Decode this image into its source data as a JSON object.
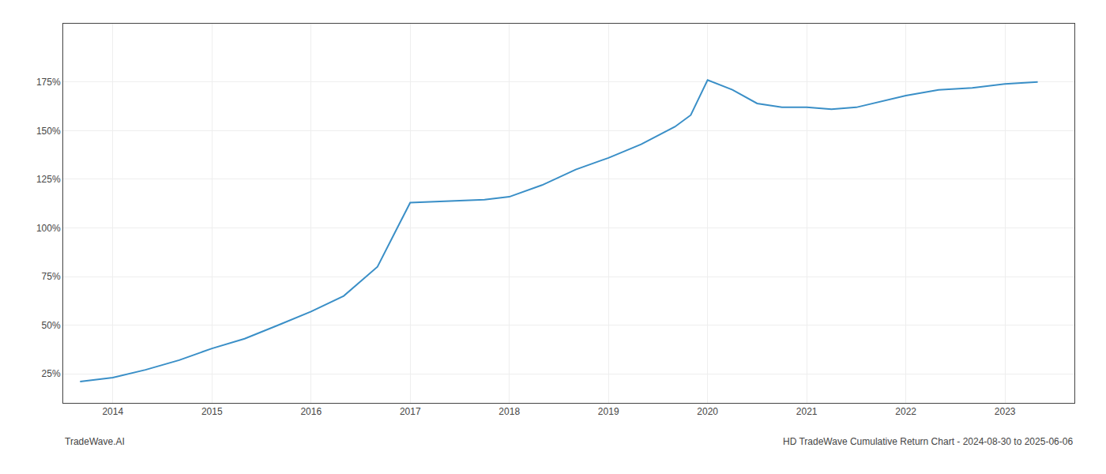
{
  "chart_data": {
    "type": "line",
    "x": [
      2013.67,
      2014.0,
      2014.33,
      2014.67,
      2015.0,
      2015.33,
      2015.67,
      2016.0,
      2016.33,
      2016.67,
      2017.0,
      2017.25,
      2017.5,
      2017.75,
      2018.0,
      2018.33,
      2018.67,
      2019.0,
      2019.33,
      2019.67,
      2019.83,
      2020.0,
      2020.25,
      2020.5,
      2020.75,
      2021.0,
      2021.25,
      2021.5,
      2022.0,
      2022.33,
      2022.67,
      2023.0,
      2023.33
    ],
    "values": [
      21,
      23,
      27,
      32,
      38,
      43,
      50,
      57,
      65,
      80,
      113,
      113.5,
      114,
      114.5,
      116,
      122,
      130,
      136,
      143,
      152,
      158,
      176,
      171,
      164,
      162,
      162,
      161,
      162,
      168,
      171,
      172,
      174,
      175
    ],
    "color": "#3a8fc7",
    "xlim": [
      2013.5,
      2023.7
    ],
    "xticks": [
      2014,
      2015,
      2016,
      2017,
      2018,
      2019,
      2020,
      2021,
      2022,
      2023
    ],
    "ylim": [
      10,
      205
    ],
    "yticks": [
      {
        "value": 25,
        "label": "25%"
      },
      {
        "value": 50,
        "label": "50%"
      },
      {
        "value": 75,
        "label": "75%"
      },
      {
        "value": 100,
        "label": "100%"
      },
      {
        "value": 125,
        "label": "125%"
      },
      {
        "value": 150,
        "label": "150%"
      },
      {
        "value": 175,
        "label": "175%"
      }
    ],
    "grid": true,
    "annotations": [
      "TradeWave.AI",
      "HD TradeWave Cumulative Return Chart - 2024-08-30 to 2025-06-06"
    ]
  }
}
